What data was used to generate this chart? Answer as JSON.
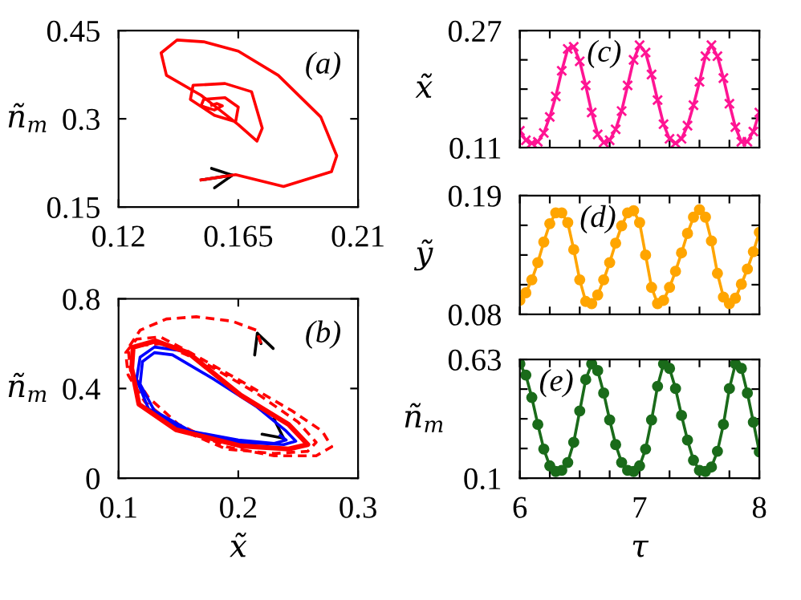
{
  "chart_data": [
    {
      "type": "line",
      "ylabel": "ñ$_{m}$",
      "annotations": [
        "(a)"
      ],
      "xlim": [
        0.12,
        0.21
      ],
      "ylim": [
        0.15,
        0.45
      ],
      "xticks": [
        0.12,
        0.165,
        0.21
      ],
      "yticks": [
        0.15,
        0.3,
        0.45
      ],
      "series": [
        {
          "color": "#ff0000",
          "x": [
            0.151,
            0.164,
            0.182,
            0.2,
            0.202,
            0.196,
            0.18,
            0.165,
            0.152,
            0.142,
            0.136,
            0.138,
            0.151,
            0.165,
            0.172,
            0.174,
            0.17,
            0.16,
            0.148,
            0.147,
            0.156,
            0.164,
            0.165,
            0.16,
            0.152,
            0.151,
            0.156,
            0.159,
            0.157,
            0.155
          ],
          "values": [
            0.196,
            0.205,
            0.185,
            0.21,
            0.237,
            0.303,
            0.374,
            0.415,
            0.431,
            0.434,
            0.412,
            0.374,
            0.34,
            0.29,
            0.262,
            0.284,
            0.346,
            0.36,
            0.357,
            0.333,
            0.306,
            0.295,
            0.32,
            0.336,
            0.333,
            0.322,
            0.315,
            0.322,
            0.326,
            0.323
          ]
        }
      ]
    },
    {
      "type": "line",
      "xlabel": "x̃",
      "ylabel": "ñ$_{m}$",
      "annotations": [
        "(b)"
      ],
      "xlim": [
        0.1,
        0.3
      ],
      "ylim": [
        0,
        0.8
      ],
      "xticks": [
        0.1,
        0.2,
        0.3
      ],
      "yticks": [
        0,
        0.4,
        0.8
      ],
      "series": [
        {
          "color": "#ff0000",
          "line_style": "dashed",
          "x": [
            0.219,
            0.215,
            0.195,
            0.165,
            0.14,
            0.118,
            0.108,
            0.11,
            0.125,
            0.15,
            0.19,
            0.23,
            0.265,
            0.278,
            0.27,
            0.245,
            0.2,
            0.16,
            0.135,
            0.115,
            0.106,
            0.108,
            0.122,
            0.15,
            0.19,
            0.23,
            0.258,
            0.265,
            0.25,
            0.215,
            0.17,
            0.135,
            0.115
          ],
          "values": [
            0.6,
            0.66,
            0.7,
            0.72,
            0.71,
            0.66,
            0.58,
            0.48,
            0.36,
            0.24,
            0.14,
            0.1,
            0.1,
            0.14,
            0.21,
            0.3,
            0.44,
            0.56,
            0.63,
            0.62,
            0.56,
            0.46,
            0.34,
            0.22,
            0.13,
            0.11,
            0.12,
            0.16,
            0.25,
            0.38,
            0.52,
            0.6,
            0.59
          ]
        },
        {
          "color": "#0000ff",
          "x": [
            0.235,
            0.24,
            0.23,
            0.2,
            0.16,
            0.13,
            0.118,
            0.12,
            0.13,
            0.145,
            0.18,
            0.215,
            0.24,
            0.248,
            0.238,
            0.2,
            0.155,
            0.125,
            0.115,
            0.118,
            0.13,
            0.15
          ],
          "values": [
            0.19,
            0.17,
            0.155,
            0.17,
            0.21,
            0.3,
            0.42,
            0.52,
            0.56,
            0.55,
            0.44,
            0.32,
            0.21,
            0.165,
            0.15,
            0.16,
            0.21,
            0.31,
            0.44,
            0.54,
            0.585,
            0.57
          ]
        },
        {
          "color": "#ff0000",
          "x": [
            0.112,
            0.131,
            0.158,
            0.202,
            0.242,
            0.258,
            0.242,
            0.202,
            0.148,
            0.117,
            0.111,
            0.112
          ],
          "values": [
            0.584,
            0.612,
            0.56,
            0.37,
            0.24,
            0.15,
            0.13,
            0.144,
            0.216,
            0.33,
            0.49,
            0.57
          ]
        }
      ]
    },
    {
      "type": "line",
      "ylabel": "x̃",
      "annotations": [
        "(c)"
      ],
      "tick_labels": "y",
      "marker": "cross",
      "xlim": [
        6,
        8
      ],
      "ylim": [
        0.11,
        0.27
      ],
      "xticks": [
        6,
        {
          "value": 6.25,
          "label": null
        },
        {
          "value": 6.5,
          "label": null
        },
        {
          "value": 6.75,
          "label": null
        },
        7,
        {
          "value": 7.25,
          "label": null
        },
        {
          "value": 7.5,
          "label": null
        },
        {
          "value": 7.75,
          "label": null
        },
        8
      ],
      "yticks": [
        0.11,
        {
          "value": 0.15,
          "label": null
        },
        {
          "value": 0.19,
          "label": null
        },
        {
          "value": 0.23,
          "label": null
        },
        0.27
      ],
      "x": [
        6.0,
        6.05,
        6.1,
        6.15,
        6.2,
        6.25,
        6.3,
        6.35,
        6.4,
        6.45,
        6.5,
        6.55,
        6.6,
        6.65,
        6.7,
        6.75,
        6.8,
        6.85,
        6.9,
        6.95,
        7.0,
        7.05,
        7.1,
        7.15,
        7.2,
        7.25,
        7.3,
        7.35,
        7.4,
        7.45,
        7.5,
        7.55,
        7.6,
        7.65,
        7.7,
        7.75,
        7.8,
        7.85,
        7.9,
        7.95,
        8.0
      ],
      "series": [
        {
          "color": "#ff1493",
          "values": [
            0.133,
            0.12,
            0.116,
            0.118,
            0.13,
            0.152,
            0.18,
            0.215,
            0.245,
            0.248,
            0.228,
            0.195,
            0.158,
            0.128,
            0.117,
            0.12,
            0.135,
            0.16,
            0.195,
            0.23,
            0.25,
            0.24,
            0.21,
            0.175,
            0.142,
            0.122,
            0.116,
            0.122,
            0.14,
            0.168,
            0.2,
            0.235,
            0.25,
            0.235,
            0.205,
            0.17,
            0.138,
            0.118,
            0.118,
            0.132,
            0.158
          ]
        }
      ]
    },
    {
      "type": "line",
      "ylabel": "ỹ",
      "annotations": [
        "(d)"
      ],
      "tick_labels": "y",
      "marker": "circle",
      "xlim": [
        6,
        8
      ],
      "ylim": [
        0.08,
        0.19
      ],
      "xticks": [
        6,
        {
          "value": 6.25,
          "label": null
        },
        {
          "value": 6.5,
          "label": null
        },
        {
          "value": 6.75,
          "label": null
        },
        7,
        {
          "value": 7.25,
          "label": null
        },
        {
          "value": 7.5,
          "label": null
        },
        {
          "value": 7.75,
          "label": null
        },
        8
      ],
      "yticks": [
        0.08,
        {
          "value": 0.1075,
          "label": null
        },
        {
          "value": 0.135,
          "label": null
        },
        {
          "value": 0.1625,
          "label": null
        },
        0.19
      ],
      "x": [
        6.0,
        6.05,
        6.1,
        6.15,
        6.2,
        6.25,
        6.3,
        6.35,
        6.4,
        6.45,
        6.5,
        6.55,
        6.6,
        6.65,
        6.7,
        6.75,
        6.8,
        6.85,
        6.9,
        6.95,
        7.0,
        7.05,
        7.1,
        7.15,
        7.2,
        7.25,
        7.3,
        7.35,
        7.4,
        7.45,
        7.5,
        7.55,
        7.6,
        7.65,
        7.7,
        7.75,
        7.8,
        7.85,
        7.9,
        7.95,
        8.0
      ],
      "series": [
        {
          "color": "#ffa500",
          "values": [
            0.093,
            0.1,
            0.112,
            0.128,
            0.147,
            0.164,
            0.174,
            0.174,
            0.165,
            0.14,
            0.112,
            0.092,
            0.09,
            0.098,
            0.112,
            0.128,
            0.146,
            0.162,
            0.174,
            0.176,
            0.165,
            0.135,
            0.105,
            0.09,
            0.093,
            0.105,
            0.12,
            0.137,
            0.155,
            0.17,
            0.177,
            0.17,
            0.148,
            0.118,
            0.096,
            0.09,
            0.095,
            0.108,
            0.122,
            0.138,
            0.156
          ]
        }
      ]
    },
    {
      "type": "line",
      "xlabel": "τ",
      "ylabel": "ñ$_{m}$",
      "annotations": [
        "(e)"
      ],
      "marker": "circle",
      "xlim": [
        6,
        8
      ],
      "ylim": [
        0.1,
        0.63
      ],
      "xticks": [
        6,
        {
          "value": 6.25,
          "label": null
        },
        {
          "value": 6.5,
          "label": null
        },
        {
          "value": 6.75,
          "label": null
        },
        7,
        {
          "value": 7.25,
          "label": null
        },
        {
          "value": 7.5,
          "label": null
        },
        {
          "value": 7.75,
          "label": null
        },
        8
      ],
      "yticks": [
        0.1,
        {
          "value": 0.2325,
          "label": null
        },
        {
          "value": 0.365,
          "label": null
        },
        {
          "value": 0.4975,
          "label": null
        },
        0.63
      ],
      "x": [
        6.0,
        6.05,
        6.1,
        6.15,
        6.2,
        6.25,
        6.3,
        6.35,
        6.4,
        6.45,
        6.5,
        6.55,
        6.6,
        6.65,
        6.7,
        6.75,
        6.8,
        6.85,
        6.9,
        6.95,
        7.0,
        7.05,
        7.1,
        7.15,
        7.2,
        7.25,
        7.3,
        7.35,
        7.4,
        7.45,
        7.5,
        7.55,
        7.6,
        7.65,
        7.7,
        7.75,
        7.8,
        7.85,
        7.9,
        7.95,
        8.0
      ],
      "series": [
        {
          "color": "#1a6b1a",
          "values": [
            0.61,
            0.56,
            0.46,
            0.34,
            0.23,
            0.155,
            0.13,
            0.135,
            0.17,
            0.26,
            0.4,
            0.54,
            0.61,
            0.58,
            0.48,
            0.36,
            0.25,
            0.17,
            0.135,
            0.13,
            0.155,
            0.23,
            0.36,
            0.51,
            0.61,
            0.59,
            0.5,
            0.38,
            0.27,
            0.18,
            0.135,
            0.13,
            0.15,
            0.22,
            0.34,
            0.5,
            0.61,
            0.59,
            0.48,
            0.35,
            0.217
          ]
        }
      ]
    }
  ]
}
